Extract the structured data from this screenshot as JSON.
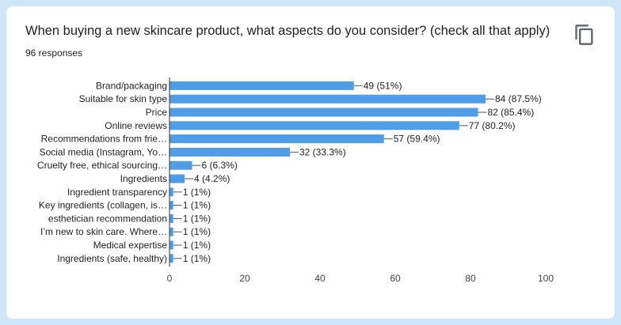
{
  "header": {
    "question": "When buying a new skincare product, what aspects do you consider? (check all that apply)",
    "responses": "96 responses",
    "copy_icon": "copy-icon"
  },
  "colors": {
    "bar": "#4e9de6",
    "background": "#cfe5f8",
    "card": "#ffffff"
  },
  "chart_data": {
    "type": "bar",
    "orientation": "horizontal",
    "categories": [
      "Brand/packaging",
      "Suitable for skin type",
      "Price",
      "Online reviews",
      "Recommendations from frie…",
      "Social media (Instagram, Yo…",
      "Cruelty free, ethical sourcing…",
      "Ingredients",
      "Ingredient transparency",
      "Key ingredients (collagen, is…",
      "esthetician recommendation",
      "I’m new to skin care. Where…",
      "Medical expertise",
      "Ingredients (safe, healthy)"
    ],
    "values": [
      49,
      84,
      82,
      77,
      57,
      32,
      6,
      4,
      1,
      1,
      1,
      1,
      1,
      1
    ],
    "data_labels": [
      "49 (51%)",
      "84 (87.5%)",
      "82 (85.4%)",
      "77 (80.2%)",
      "57 (59.4%)",
      "32 (33.3%)",
      "6 (6.3%)",
      "4 (4.2%)",
      "1 (1%)",
      "1 (1%)",
      "1 (1%)",
      "1 (1%)",
      "1 (1%)",
      "1 (1%)"
    ],
    "xlim": [
      0,
      100
    ],
    "x_ticks": [
      "0",
      "20",
      "40",
      "60",
      "80",
      "100"
    ],
    "title": "",
    "xlabel": "",
    "ylabel": "",
    "grid": false,
    "legend": "none"
  }
}
